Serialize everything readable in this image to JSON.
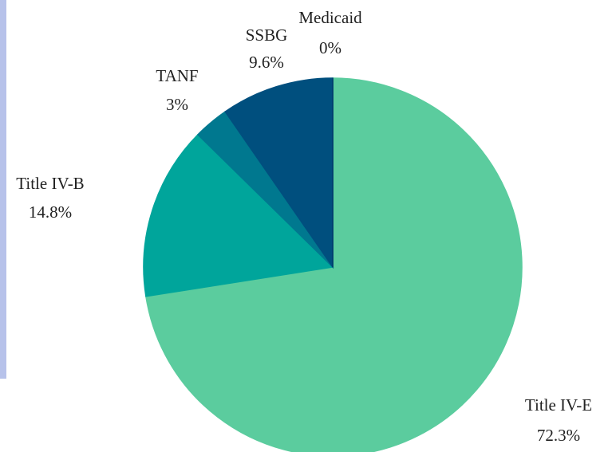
{
  "chart_data": {
    "type": "pie",
    "categories": [
      "Title IV-E",
      "Title IV-B",
      "TANF",
      "SSBG",
      "Medicaid"
    ],
    "values": [
      72.3,
      14.8,
      3,
      9.6,
      0
    ],
    "value_labels": [
      "72.3%",
      "14.8%",
      "3%",
      "9.6%",
      "0%"
    ],
    "colors": [
      "#5bcc9e",
      "#00a59b",
      "#00788f",
      "#004f7e",
      "#003a6b"
    ]
  }
}
